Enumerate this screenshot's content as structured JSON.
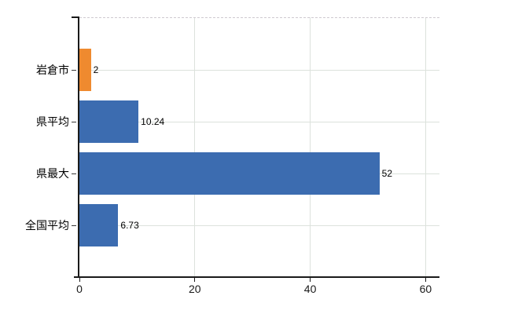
{
  "chart_data": {
    "type": "bar",
    "orientation": "horizontal",
    "title": "",
    "categories": [
      "岩倉市",
      "県平均",
      "県最大",
      "全国平均"
    ],
    "values": [
      2,
      10.24,
      52,
      6.73
    ],
    "value_labels": [
      "2",
      "10.24",
      "52",
      "6.73"
    ],
    "bar_colors": [
      "#ef8a2f",
      "#3c6cb0",
      "#3c6cb0",
      "#3c6cb0"
    ],
    "x_ticks": [
      "0",
      "20",
      "40",
      "60"
    ],
    "x_tick_values": [
      0,
      20,
      40,
      60
    ],
    "xlim": [
      0,
      62.4
    ],
    "grid": {
      "vertical": true,
      "horizontal": true
    },
    "legend": "none",
    "plot_border_top_style": "dashed"
  },
  "colors": {
    "background": "#ffffff",
    "bar_blue": "#3c6cb0",
    "bar_orange": "#ef8a2f",
    "gridline": "#dce2dc",
    "top_border": "#cfc9d0",
    "axis": "#1a1a1a",
    "text": "#000000"
  }
}
